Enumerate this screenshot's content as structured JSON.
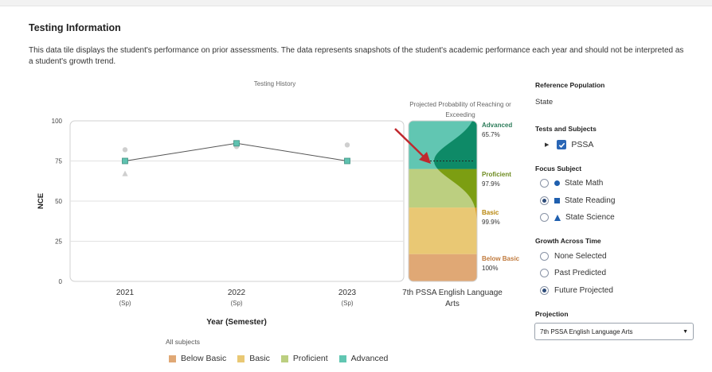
{
  "tile": {
    "title": "Testing Information",
    "description": "This data tile displays the student's performance on prior assessments. The data represents snapshots of the student's academic performance each year and should not be interpreted as a student's growth trend."
  },
  "chart_data": [
    {
      "type": "line",
      "title": "Testing History",
      "xlabel": "Year (Semester)",
      "ylabel": "NCE",
      "ylim": [
        0,
        100
      ],
      "yticks": [
        0,
        25,
        50,
        75,
        100
      ],
      "categories": [
        "2021",
        "2022",
        "2023"
      ],
      "category_sublabels": [
        "(Sp)",
        "(Sp)",
        "(Sp)"
      ],
      "grid": true,
      "series": [
        {
          "marker": "square",
          "values": [
            75,
            86,
            75
          ],
          "color": "#5fc2b0",
          "connected": true
        },
        {
          "marker": "circle",
          "values": [
            82,
            84,
            85
          ],
          "color": "#cfcfcf",
          "connected": false
        },
        {
          "marker": "triangle",
          "values": [
            67,
            null,
            null
          ],
          "color": "#cfcfcf",
          "connected": false
        }
      ]
    },
    {
      "type": "area",
      "title": "Projected Probability of Reaching or Exceeding",
      "xlabel": "7th PSSA English Language Arts",
      "ylim": [
        0,
        100
      ],
      "bands": [
        {
          "label": "Below Basic",
          "range": [
            0,
            17
          ],
          "color": "#e0a875",
          "prob": "100%"
        },
        {
          "label": "Basic",
          "range": [
            17,
            46
          ],
          "color": "#e9c874",
          "prob": "99.9%"
        },
        {
          "label": "Proficient",
          "range": [
            46,
            70
          ],
          "color": "#bccf80",
          "prob": "97.9%"
        },
        {
          "label": "Advanced",
          "range": [
            70,
            100
          ],
          "color": "#61c6b2",
          "prob": "65.7%"
        }
      ],
      "projected_value": 75
    }
  ],
  "legend": {
    "title": "All subjects",
    "items": [
      {
        "label": "Below Basic",
        "color": "#e0a875"
      },
      {
        "label": "Basic",
        "color": "#e9c874"
      },
      {
        "label": "Proficient",
        "color": "#bccf80"
      },
      {
        "label": "Advanced",
        "color": "#61c6b2"
      }
    ]
  },
  "sidebar": {
    "reference_population": {
      "heading": "Reference Population",
      "value": "State"
    },
    "tests_and_subjects": {
      "heading": "Tests and Subjects",
      "item": "PSSA"
    },
    "focus_subject": {
      "heading": "Focus Subject",
      "options": [
        {
          "label": "State Math",
          "marker": "circle",
          "selected": false
        },
        {
          "label": "State Reading",
          "marker": "square",
          "selected": true
        },
        {
          "label": "State Science",
          "marker": "triangle",
          "selected": false
        }
      ]
    },
    "growth_across_time": {
      "heading": "Growth Across Time",
      "options": [
        {
          "label": "None Selected",
          "selected": false
        },
        {
          "label": "Past Predicted",
          "selected": false
        },
        {
          "label": "Future Projected",
          "selected": true
        }
      ]
    },
    "projection": {
      "heading": "Projection",
      "value": "7th PSSA English Language Arts"
    }
  },
  "colors": {
    "accent": "#2a66b6",
    "arrow": "#c0282d",
    "advanced_label": "#2e7d5b",
    "proficient_label": "#6d8b1f",
    "basic_label": "#b8860b",
    "below_basic_label": "#c07a3d"
  },
  "icons": {
    "checkbox": "checkbox-checked-icon",
    "expand": "caret-right-icon",
    "dropdown": "chevron-down-icon",
    "pointer": "red-arrow-icon"
  }
}
